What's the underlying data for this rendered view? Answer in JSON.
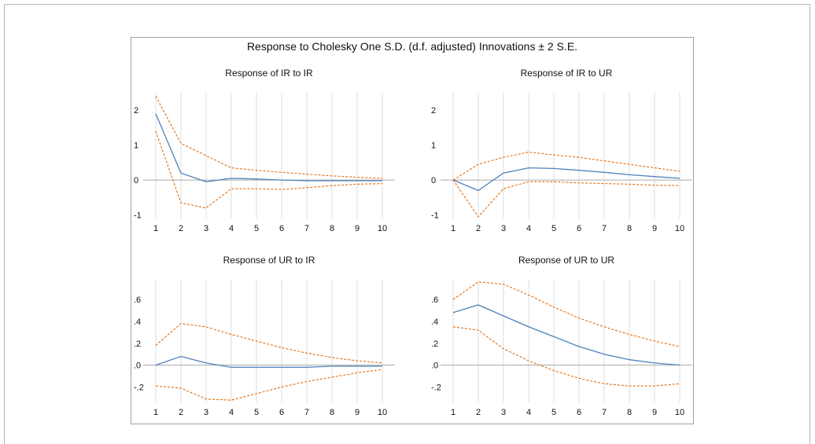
{
  "figure": {
    "title": "Response to Cholesky One S.D. (d.f. adjusted) Innovations ± 2 S.E."
  },
  "colors": {
    "response": "#4f81bd",
    "band": "#e46c0a",
    "grid": "#dddddd",
    "zero": "#aaaaaa"
  },
  "chart_data": [
    {
      "type": "line",
      "title": "Response of IR to IR",
      "x": [
        1,
        2,
        3,
        4,
        5,
        6,
        7,
        8,
        9,
        10
      ],
      "xticks": [
        "1",
        "2",
        "3",
        "4",
        "5",
        "6",
        "7",
        "8",
        "9",
        "10"
      ],
      "ylim": [
        -1.1,
        2.5
      ],
      "yticks": [
        -1,
        0,
        1,
        2
      ],
      "yticklabels": [
        "-1",
        "0",
        "1",
        "2"
      ],
      "grid": true,
      "series": [
        {
          "role": "response",
          "values": [
            1.9,
            0.2,
            -0.05,
            0.05,
            0.03,
            0.0,
            -0.02,
            -0.02,
            -0.02,
            -0.02
          ]
        },
        {
          "role": "upper",
          "values": [
            2.4,
            1.05,
            0.7,
            0.35,
            0.28,
            0.22,
            0.17,
            0.12,
            0.08,
            0.05
          ]
        },
        {
          "role": "lower",
          "values": [
            1.4,
            -0.65,
            -0.8,
            -0.25,
            -0.25,
            -0.27,
            -0.22,
            -0.16,
            -0.12,
            -0.1
          ]
        }
      ]
    },
    {
      "type": "line",
      "title": "Response of IR to UR",
      "x": [
        1,
        2,
        3,
        4,
        5,
        6,
        7,
        8,
        9,
        10
      ],
      "xticks": [
        "1",
        "2",
        "3",
        "4",
        "5",
        "6",
        "7",
        "8",
        "9",
        "10"
      ],
      "ylim": [
        -1.1,
        2.5
      ],
      "yticks": [
        -1,
        0,
        1,
        2
      ],
      "yticklabels": [
        "-1",
        "0",
        "1",
        "2"
      ],
      "grid": true,
      "series": [
        {
          "role": "response",
          "values": [
            0.0,
            -0.3,
            0.2,
            0.35,
            0.33,
            0.28,
            0.22,
            0.15,
            0.1,
            0.05
          ]
        },
        {
          "role": "upper",
          "values": [
            0.0,
            0.45,
            0.65,
            0.8,
            0.72,
            0.65,
            0.55,
            0.45,
            0.35,
            0.25
          ]
        },
        {
          "role": "lower",
          "values": [
            0.0,
            -1.05,
            -0.25,
            -0.05,
            -0.05,
            -0.08,
            -0.1,
            -0.12,
            -0.15,
            -0.16
          ]
        }
      ]
    },
    {
      "type": "line",
      "title": "Response of UR to IR",
      "x": [
        1,
        2,
        3,
        4,
        5,
        6,
        7,
        8,
        9,
        10
      ],
      "xticks": [
        "1",
        "2",
        "3",
        "4",
        "5",
        "6",
        "7",
        "8",
        "9",
        "10"
      ],
      "ylim": [
        -0.34,
        0.78
      ],
      "yticks": [
        -0.2,
        0.0,
        0.2,
        0.4,
        0.6
      ],
      "yticklabels": [
        "-.2",
        ".0",
        ".2",
        ".4",
        ".6"
      ],
      "grid": true,
      "series": [
        {
          "role": "response",
          "values": [
            0.0,
            0.08,
            0.02,
            -0.02,
            -0.02,
            -0.02,
            -0.02,
            -0.01,
            -0.01,
            -0.01
          ]
        },
        {
          "role": "upper",
          "values": [
            0.18,
            0.38,
            0.35,
            0.28,
            0.22,
            0.16,
            0.11,
            0.07,
            0.04,
            0.02
          ]
        },
        {
          "role": "lower",
          "values": [
            -0.19,
            -0.21,
            -0.31,
            -0.32,
            -0.26,
            -0.2,
            -0.15,
            -0.11,
            -0.07,
            -0.04
          ]
        }
      ]
    },
    {
      "type": "line",
      "title": "Response of UR to UR",
      "x": [
        1,
        2,
        3,
        4,
        5,
        6,
        7,
        8,
        9,
        10
      ],
      "xticks": [
        "1",
        "2",
        "3",
        "4",
        "5",
        "6",
        "7",
        "8",
        "9",
        "10"
      ],
      "ylim": [
        -0.34,
        0.78
      ],
      "yticks": [
        -0.2,
        0.0,
        0.2,
        0.4,
        0.6
      ],
      "yticklabels": [
        "-.2",
        ".0",
        ".2",
        ".4",
        ".6"
      ],
      "grid": true,
      "series": [
        {
          "role": "response",
          "values": [
            0.48,
            0.55,
            0.45,
            0.35,
            0.26,
            0.17,
            0.1,
            0.05,
            0.02,
            0.0
          ]
        },
        {
          "role": "upper",
          "values": [
            0.6,
            0.76,
            0.74,
            0.64,
            0.53,
            0.43,
            0.35,
            0.28,
            0.22,
            0.17
          ]
        },
        {
          "role": "lower",
          "values": [
            0.35,
            0.32,
            0.15,
            0.04,
            -0.05,
            -0.12,
            -0.17,
            -0.19,
            -0.19,
            -0.17
          ]
        }
      ]
    }
  ]
}
